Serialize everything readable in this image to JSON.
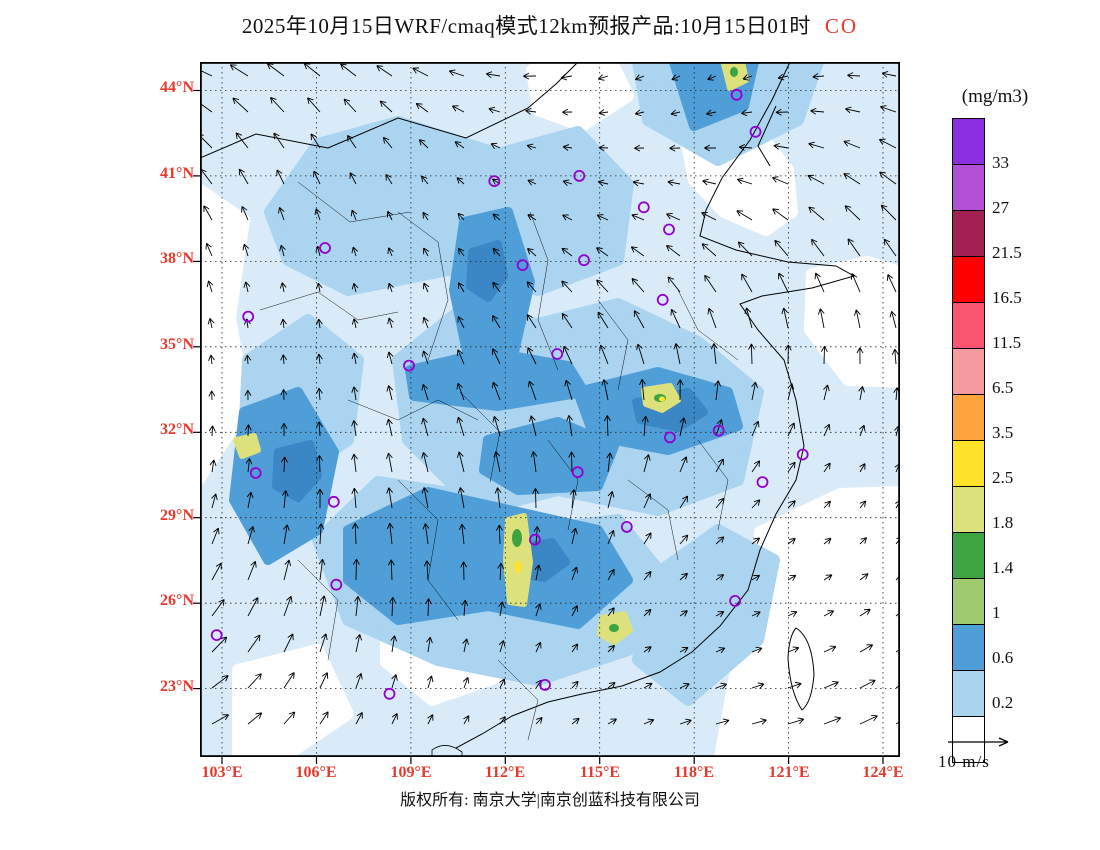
{
  "title": {
    "main": "2025年10月15日WRF/cmaq模式12km预报产品:10月15日01时",
    "species": "CO"
  },
  "axes": {
    "label_color": "#e8382c",
    "lat_labels": [
      "44°N",
      "41°N",
      "38°N",
      "35°N",
      "32°N",
      "29°N",
      "26°N",
      "23°N"
    ],
    "lat_values": [
      44,
      41,
      38,
      35,
      32,
      29,
      26,
      23
    ],
    "lon_labels": [
      "103°E",
      "106°E",
      "109°E",
      "112°E",
      "115°E",
      "118°E",
      "121°E",
      "124°E"
    ],
    "lon_values": [
      103,
      106,
      109,
      112,
      115,
      118,
      121,
      124
    ]
  },
  "colorbar": {
    "units": "(mg/m3)",
    "tick_labels": [
      "33",
      "27",
      "21.5",
      "16.5",
      "11.5",
      "6.5",
      "3.5",
      "2.5",
      "1.8",
      "1.4",
      "1",
      "0.6",
      "0.2"
    ],
    "colors": [
      "#8b2fe0",
      "#b44fd8",
      "#a32052",
      "#fe0000",
      "#fa5570",
      "#f59a9e",
      "#fca53d",
      "#ffe32a",
      "#dde17c",
      "#3ea341",
      "#9fca6e",
      "#4f9ed7",
      "#a8d4ef",
      "#ffffff"
    ]
  },
  "wind_legend": {
    "label": "10 m/s"
  },
  "footer": {
    "copyright": "版权所有: 南京大学|南京创蓝科技有限公司"
  },
  "map": {
    "lon_range": [
      102.3,
      124.54
    ],
    "lat_range": [
      20.6,
      45.0
    ],
    "marker_color": "#9400d3",
    "palette": {
      "pale": "#d9ebf8",
      "light": "#aad4ef",
      "medium": "#4f9ed7",
      "dark": "#3b86c4",
      "khaki": "#dde17c",
      "green": "#3ea341",
      "yellow": "#ffe32a"
    },
    "city_markers": [
      [
        119.35,
        43.85
      ],
      [
        119.95,
        42.55
      ],
      [
        111.65,
        40.82
      ],
      [
        114.35,
        41.0
      ],
      [
        116.4,
        39.9
      ],
      [
        117.2,
        39.12
      ],
      [
        106.27,
        38.47
      ],
      [
        114.5,
        38.04
      ],
      [
        112.55,
        37.87
      ],
      [
        117.0,
        36.65
      ],
      [
        103.83,
        36.06
      ],
      [
        113.65,
        34.75
      ],
      [
        108.94,
        34.34
      ],
      [
        118.78,
        32.06
      ],
      [
        117.23,
        31.82
      ],
      [
        121.45,
        31.22
      ],
      [
        104.07,
        30.57
      ],
      [
        114.3,
        30.6
      ],
      [
        106.55,
        29.56
      ],
      [
        112.94,
        28.23
      ],
      [
        115.86,
        28.68
      ],
      [
        120.17,
        30.25
      ],
      [
        119.3,
        26.08
      ],
      [
        106.63,
        26.65
      ],
      [
        102.83,
        24.88
      ],
      [
        108.32,
        22.82
      ],
      [
        113.26,
        23.13
      ]
    ]
  },
  "chart_data": {
    "type": "heatmap",
    "title": "2025年10月15日WRF/cmaq模式12km预报产品:10月15日01时 CO",
    "units": "mg/m3",
    "contour_levels": [
      0.2,
      0.6,
      1,
      1.4,
      1.8,
      2.5,
      3.5,
      6.5,
      11.5,
      16.5,
      21.5,
      27,
      33
    ],
    "lon_ticks": [
      103,
      106,
      109,
      112,
      115,
      118,
      121,
      124
    ],
    "lat_ticks": [
      23,
      26,
      29,
      32,
      35,
      38,
      41,
      44
    ],
    "wind_reference_speed_mps": 10,
    "legend_position": "right"
  }
}
